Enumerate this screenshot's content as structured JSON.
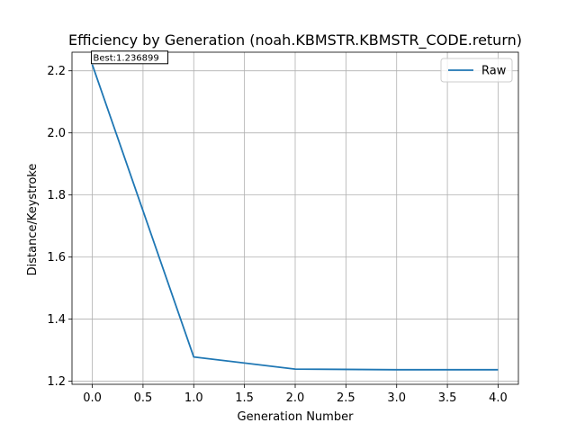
{
  "chart_data": {
    "type": "line",
    "title": "Efficiency by Generation (noah.KBMSTR.KBMSTR_CODE.return)",
    "xlabel": "Generation Number",
    "ylabel": "Distance/Keystroke",
    "xlim": [
      -0.2,
      4.2
    ],
    "ylim": [
      1.19,
      2.26
    ],
    "xticks": [
      0.0,
      0.5,
      1.0,
      1.5,
      2.0,
      2.5,
      3.0,
      3.5,
      4.0
    ],
    "xtick_labels": [
      "0.0",
      "0.5",
      "1.0",
      "1.5",
      "2.0",
      "2.5",
      "3.0",
      "3.5",
      "4.0"
    ],
    "yticks": [
      1.2,
      1.4,
      1.6,
      1.8,
      2.0,
      2.2
    ],
    "ytick_labels": [
      "1.2",
      "1.4",
      "1.6",
      "1.8",
      "2.0",
      "2.2"
    ],
    "grid": true,
    "legend_position": "top-right",
    "series": [
      {
        "name": "Raw",
        "color": "#1f77b4",
        "x": [
          0,
          1,
          2,
          3,
          4
        ],
        "y": [
          2.22,
          1.278,
          1.239,
          1.237,
          1.237
        ]
      }
    ],
    "annotations": [
      {
        "text": "Best:1.236899",
        "x": 0,
        "y": 2.22
      }
    ]
  }
}
